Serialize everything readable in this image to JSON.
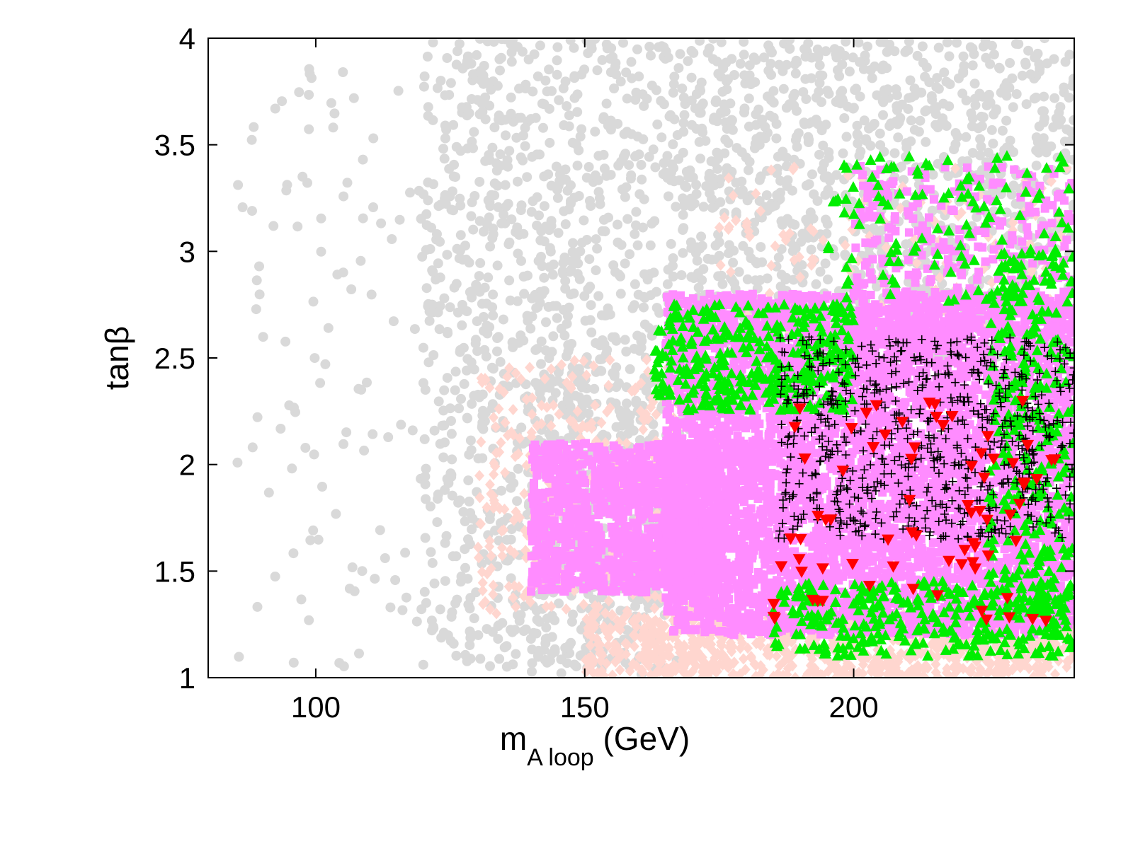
{
  "chart_data": {
    "type": "scatter",
    "title": "",
    "xlabel": {
      "main": "m",
      "subscript": "A loop",
      "suffix": " (GeV)"
    },
    "ylabel": "tanβ",
    "xlim": [
      80,
      241
    ],
    "ylim": [
      1,
      4
    ],
    "xticks": [
      100,
      150,
      200
    ],
    "xtick_labels": [
      "100",
      "150",
      "200"
    ],
    "yticks": [
      1,
      1.5,
      2,
      2.5,
      3,
      3.5,
      4
    ],
    "ytick_labels": [
      "1",
      "1.5",
      "2",
      "2.5",
      "3",
      "3.5",
      "4"
    ],
    "grid": false,
    "legend": "none",
    "series": [
      {
        "marker": "circle",
        "color": "#d9d9d9",
        "regions": [
          {
            "x": [
              85,
              120
            ],
            "y": [
              1.05,
              3.95
            ],
            "n": 110
          },
          {
            "x": [
              120,
              165
            ],
            "y": [
              1.05,
              4.0
            ],
            "n": 1100
          },
          {
            "x": [
              165,
              241
            ],
            "y": [
              2.5,
              4.0
            ],
            "n": 1200
          },
          {
            "x": [
              140,
              170
            ],
            "y": [
              1.0,
              2.6
            ],
            "n": 250
          }
        ]
      },
      {
        "marker": "diamond",
        "color": "#ffd6cf",
        "regions": [
          {
            "x": [
              130,
              175
            ],
            "y": [
              1.3,
              2.5
            ],
            "n": 400
          },
          {
            "x": [
              150,
              241
            ],
            "y": [
              1.0,
              1.3
            ],
            "n": 900
          },
          {
            "x": [
              175,
              241
            ],
            "y": [
              2.6,
              3.4
            ],
            "n": 140
          }
        ]
      },
      {
        "marker": "square",
        "color": "#ff8cff",
        "regions": [
          {
            "x": [
              140,
              175
            ],
            "y": [
              1.4,
              2.1
            ],
            "n": 1200
          },
          {
            "x": [
              165,
              241
            ],
            "y": [
              1.2,
              2.8
            ],
            "n": 5200
          },
          {
            "x": [
              200,
              241
            ],
            "y": [
              2.6,
              3.4
            ],
            "n": 350
          }
        ]
      },
      {
        "marker": "triangle-up",
        "color": "#00ee00",
        "regions": [
          {
            "x": [
              163,
              200
            ],
            "y": [
              2.25,
              2.75
            ],
            "n": 350
          },
          {
            "x": [
              195,
              241
            ],
            "y": [
              2.75,
              3.45
            ],
            "n": 120
          },
          {
            "x": [
              185,
              241
            ],
            "y": [
              1.1,
              1.45
            ],
            "n": 300
          },
          {
            "x": [
              225,
              241
            ],
            "y": [
              1.3,
              3.0
            ],
            "n": 300
          }
        ]
      },
      {
        "marker": "plus",
        "color": "#000000",
        "regions": [
          {
            "x": [
              186,
              241
            ],
            "y": [
              1.65,
              2.6
            ],
            "n": 650
          }
        ]
      },
      {
        "marker": "triangle-down",
        "color": "#ff0000",
        "regions": [
          {
            "x": [
              185,
              240
            ],
            "y": [
              1.25,
              2.3
            ],
            "n": 75
          }
        ]
      }
    ]
  }
}
